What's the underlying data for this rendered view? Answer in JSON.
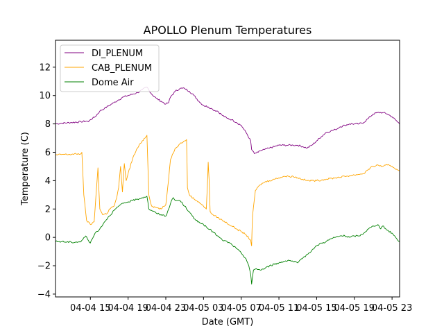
{
  "chart_data": {
    "type": "line",
    "title": "APOLLO Plenum Temperatures",
    "xlabel": "Date (GMT)",
    "ylabel": "Temperature (C)",
    "xlim": [
      11.3,
      47.8
    ],
    "ylim": [
      -4.2,
      13.9
    ],
    "x_unit": "hours since 04-04 00:00 GMT",
    "x_ticks": [
      {
        "value": 15,
        "label": "04-04 15"
      },
      {
        "value": 19,
        "label": "04-04 19"
      },
      {
        "value": 23,
        "label": "04-04 23"
      },
      {
        "value": 27,
        "label": "04-05 03"
      },
      {
        "value": 31,
        "label": "04-05 07"
      },
      {
        "value": 35,
        "label": "04-05 11"
      },
      {
        "value": 39,
        "label": "04-05 15"
      },
      {
        "value": 43,
        "label": "04-05 19"
      },
      {
        "value": 47,
        "label": "04-05 23"
      }
    ],
    "y_ticks": [
      {
        "value": -4,
        "label": "−4"
      },
      {
        "value": -2,
        "label": "−2"
      },
      {
        "value": 0,
        "label": "0"
      },
      {
        "value": 2,
        "label": "2"
      },
      {
        "value": 4,
        "label": "4"
      },
      {
        "value": 6,
        "label": "6"
      },
      {
        "value": 8,
        "label": "8"
      },
      {
        "value": 10,
        "label": "10"
      },
      {
        "value": 12,
        "label": "12"
      }
    ],
    "legend": {
      "position": "top-left"
    },
    "series": [
      {
        "name": "DI_PLENUM",
        "color": "#800080",
        "x": [
          11.3,
          12.0,
          13.0,
          14.0,
          14.6,
          14.8,
          15.0,
          15.5,
          16.0,
          16.5,
          17.0,
          17.5,
          18.0,
          18.5,
          19.0,
          19.5,
          20.0,
          20.5,
          21.0,
          21.5,
          22.0,
          22.5,
          23.0,
          23.3,
          23.5,
          24.0,
          24.5,
          25.0,
          25.5,
          26.0,
          26.5,
          27.0,
          27.5,
          27.8,
          28.0,
          28.5,
          29.0,
          29.5,
          30.0,
          30.5,
          31.0,
          31.3,
          31.6,
          32.0,
          32.1,
          32.4,
          32.8,
          33.0,
          33.5,
          34.0,
          34.5,
          35.0,
          35.5,
          36.0,
          36.5,
          37.0,
          37.5,
          38.0,
          38.5,
          39.0,
          39.5,
          40.0,
          40.5,
          41.0,
          41.5,
          42.0,
          42.5,
          43.0,
          43.5,
          44.0,
          44.5,
          45.0,
          45.5,
          46.0,
          46.5,
          47.0,
          47.5,
          47.8
        ],
        "y": [
          8.0,
          8.05,
          8.1,
          8.15,
          8.2,
          8.15,
          8.3,
          8.5,
          8.9,
          9.1,
          9.3,
          9.5,
          9.7,
          9.9,
          10.0,
          10.1,
          10.2,
          10.4,
          10.6,
          10.1,
          9.8,
          9.6,
          9.4,
          9.5,
          9.9,
          10.3,
          10.5,
          10.5,
          10.3,
          10.0,
          9.6,
          9.3,
          9.2,
          9.1,
          9.0,
          8.9,
          8.6,
          8.4,
          8.3,
          8.1,
          7.9,
          7.6,
          7.3,
          6.8,
          6.2,
          5.9,
          6.0,
          6.1,
          6.2,
          6.3,
          6.4,
          6.5,
          6.5,
          6.5,
          6.5,
          6.5,
          6.4,
          6.3,
          6.5,
          6.8,
          7.1,
          7.4,
          7.5,
          7.6,
          7.8,
          7.9,
          8.0,
          8.0,
          8.0,
          8.1,
          8.4,
          8.7,
          8.8,
          8.8,
          8.7,
          8.5,
          8.2,
          8.0
        ]
      },
      {
        "name": "CAB_PLENUM",
        "color": "#ffa500",
        "x": [
          11.3,
          12.0,
          13.0,
          14.0,
          14.1,
          14.3,
          14.6,
          15.0,
          15.4,
          15.6,
          15.8,
          16.0,
          16.3,
          16.8,
          17.0,
          17.5,
          17.8,
          18.0,
          18.2,
          18.4,
          18.6,
          18.8,
          19.0,
          19.5,
          20.0,
          20.5,
          20.9,
          21.0,
          21.2,
          21.5,
          22.0,
          22.5,
          23.0,
          23.2,
          23.5,
          24.0,
          24.5,
          25.0,
          25.2,
          25.3,
          25.5,
          26.0,
          26.5,
          27.0,
          27.3,
          27.4,
          27.5,
          27.6,
          27.7,
          27.8,
          28.0,
          28.5,
          29.0,
          29.5,
          30.0,
          30.5,
          31.0,
          31.5,
          32.0,
          32.1,
          32.2,
          32.5,
          33.0,
          33.5,
          34.0,
          34.5,
          35.0,
          35.5,
          36.0,
          36.5,
          37.0,
          37.5,
          38.0,
          38.5,
          39.0,
          40.0,
          41.0,
          42.0,
          43.0,
          44.0,
          44.5,
          45.0,
          45.5,
          46.0,
          46.5,
          47.0,
          47.5,
          47.8
        ],
        "y": [
          5.8,
          5.85,
          5.85,
          5.9,
          6.0,
          3.0,
          1.2,
          0.9,
          1.1,
          3.0,
          4.9,
          2.0,
          1.6,
          1.7,
          2.0,
          2.2,
          2.8,
          3.5,
          5.0,
          3.2,
          5.2,
          4.0,
          4.5,
          5.6,
          6.3,
          6.8,
          7.1,
          7.2,
          3.0,
          2.2,
          2.1,
          2.0,
          2.3,
          3.5,
          5.5,
          6.3,
          6.6,
          6.8,
          6.9,
          3.5,
          3.0,
          2.7,
          2.5,
          2.2,
          2.0,
          3.5,
          5.3,
          4.0,
          1.8,
          1.7,
          1.6,
          1.4,
          1.2,
          1.0,
          0.8,
          0.6,
          0.4,
          0.2,
          -0.2,
          -0.6,
          1.5,
          3.3,
          3.7,
          3.9,
          4.0,
          4.1,
          4.2,
          4.3,
          4.3,
          4.3,
          4.2,
          4.1,
          4.0,
          4.0,
          4.0,
          4.1,
          4.2,
          4.3,
          4.4,
          4.5,
          4.8,
          5.0,
          5.1,
          5.0,
          5.1,
          5.0,
          4.8,
          4.7
        ]
      },
      {
        "name": "Dome Air",
        "color": "#008000",
        "x": [
          11.3,
          12.0,
          13.0,
          14.0,
          14.5,
          15.0,
          15.5,
          16.0,
          16.5,
          17.0,
          17.5,
          18.0,
          18.5,
          19.0,
          19.5,
          20.0,
          20.5,
          21.0,
          21.2,
          21.5,
          22.0,
          22.5,
          23.0,
          23.3,
          23.5,
          23.8,
          24.0,
          24.5,
          25.0,
          25.5,
          26.0,
          26.5,
          27.0,
          27.5,
          28.0,
          28.5,
          29.0,
          29.5,
          30.0,
          30.5,
          31.0,
          31.5,
          31.8,
          32.0,
          32.1,
          32.3,
          32.6,
          33.0,
          33.5,
          34.0,
          34.5,
          35.0,
          35.5,
          36.0,
          36.5,
          37.0,
          37.5,
          38.0,
          38.5,
          39.0,
          39.5,
          40.0,
          40.5,
          41.0,
          41.5,
          42.0,
          42.5,
          43.0,
          43.5,
          44.0,
          44.5,
          45.0,
          45.5,
          45.8,
          46.0,
          46.5,
          47.0,
          47.5,
          47.8
        ],
        "y": [
          -0.3,
          -0.3,
          -0.35,
          -0.3,
          0.1,
          -0.4,
          0.3,
          0.6,
          1.1,
          1.5,
          1.9,
          2.2,
          2.4,
          2.5,
          2.6,
          2.7,
          2.8,
          2.9,
          2.0,
          1.9,
          1.7,
          1.6,
          1.5,
          2.0,
          2.4,
          2.8,
          2.6,
          2.6,
          2.2,
          1.8,
          1.3,
          1.1,
          0.9,
          0.6,
          0.4,
          0.1,
          -0.2,
          -0.3,
          -0.5,
          -0.8,
          -1.1,
          -1.5,
          -2.0,
          -2.6,
          -3.3,
          -2.3,
          -2.2,
          -2.3,
          -2.2,
          -2.0,
          -1.9,
          -1.8,
          -1.7,
          -1.6,
          -1.7,
          -1.8,
          -1.5,
          -1.2,
          -0.9,
          -0.6,
          -0.4,
          -0.3,
          -0.1,
          0.0,
          0.1,
          0.1,
          0.0,
          0.1,
          0.1,
          0.3,
          0.6,
          0.8,
          0.9,
          0.6,
          0.8,
          0.5,
          0.3,
          -0.1,
          -0.3
        ]
      }
    ]
  }
}
